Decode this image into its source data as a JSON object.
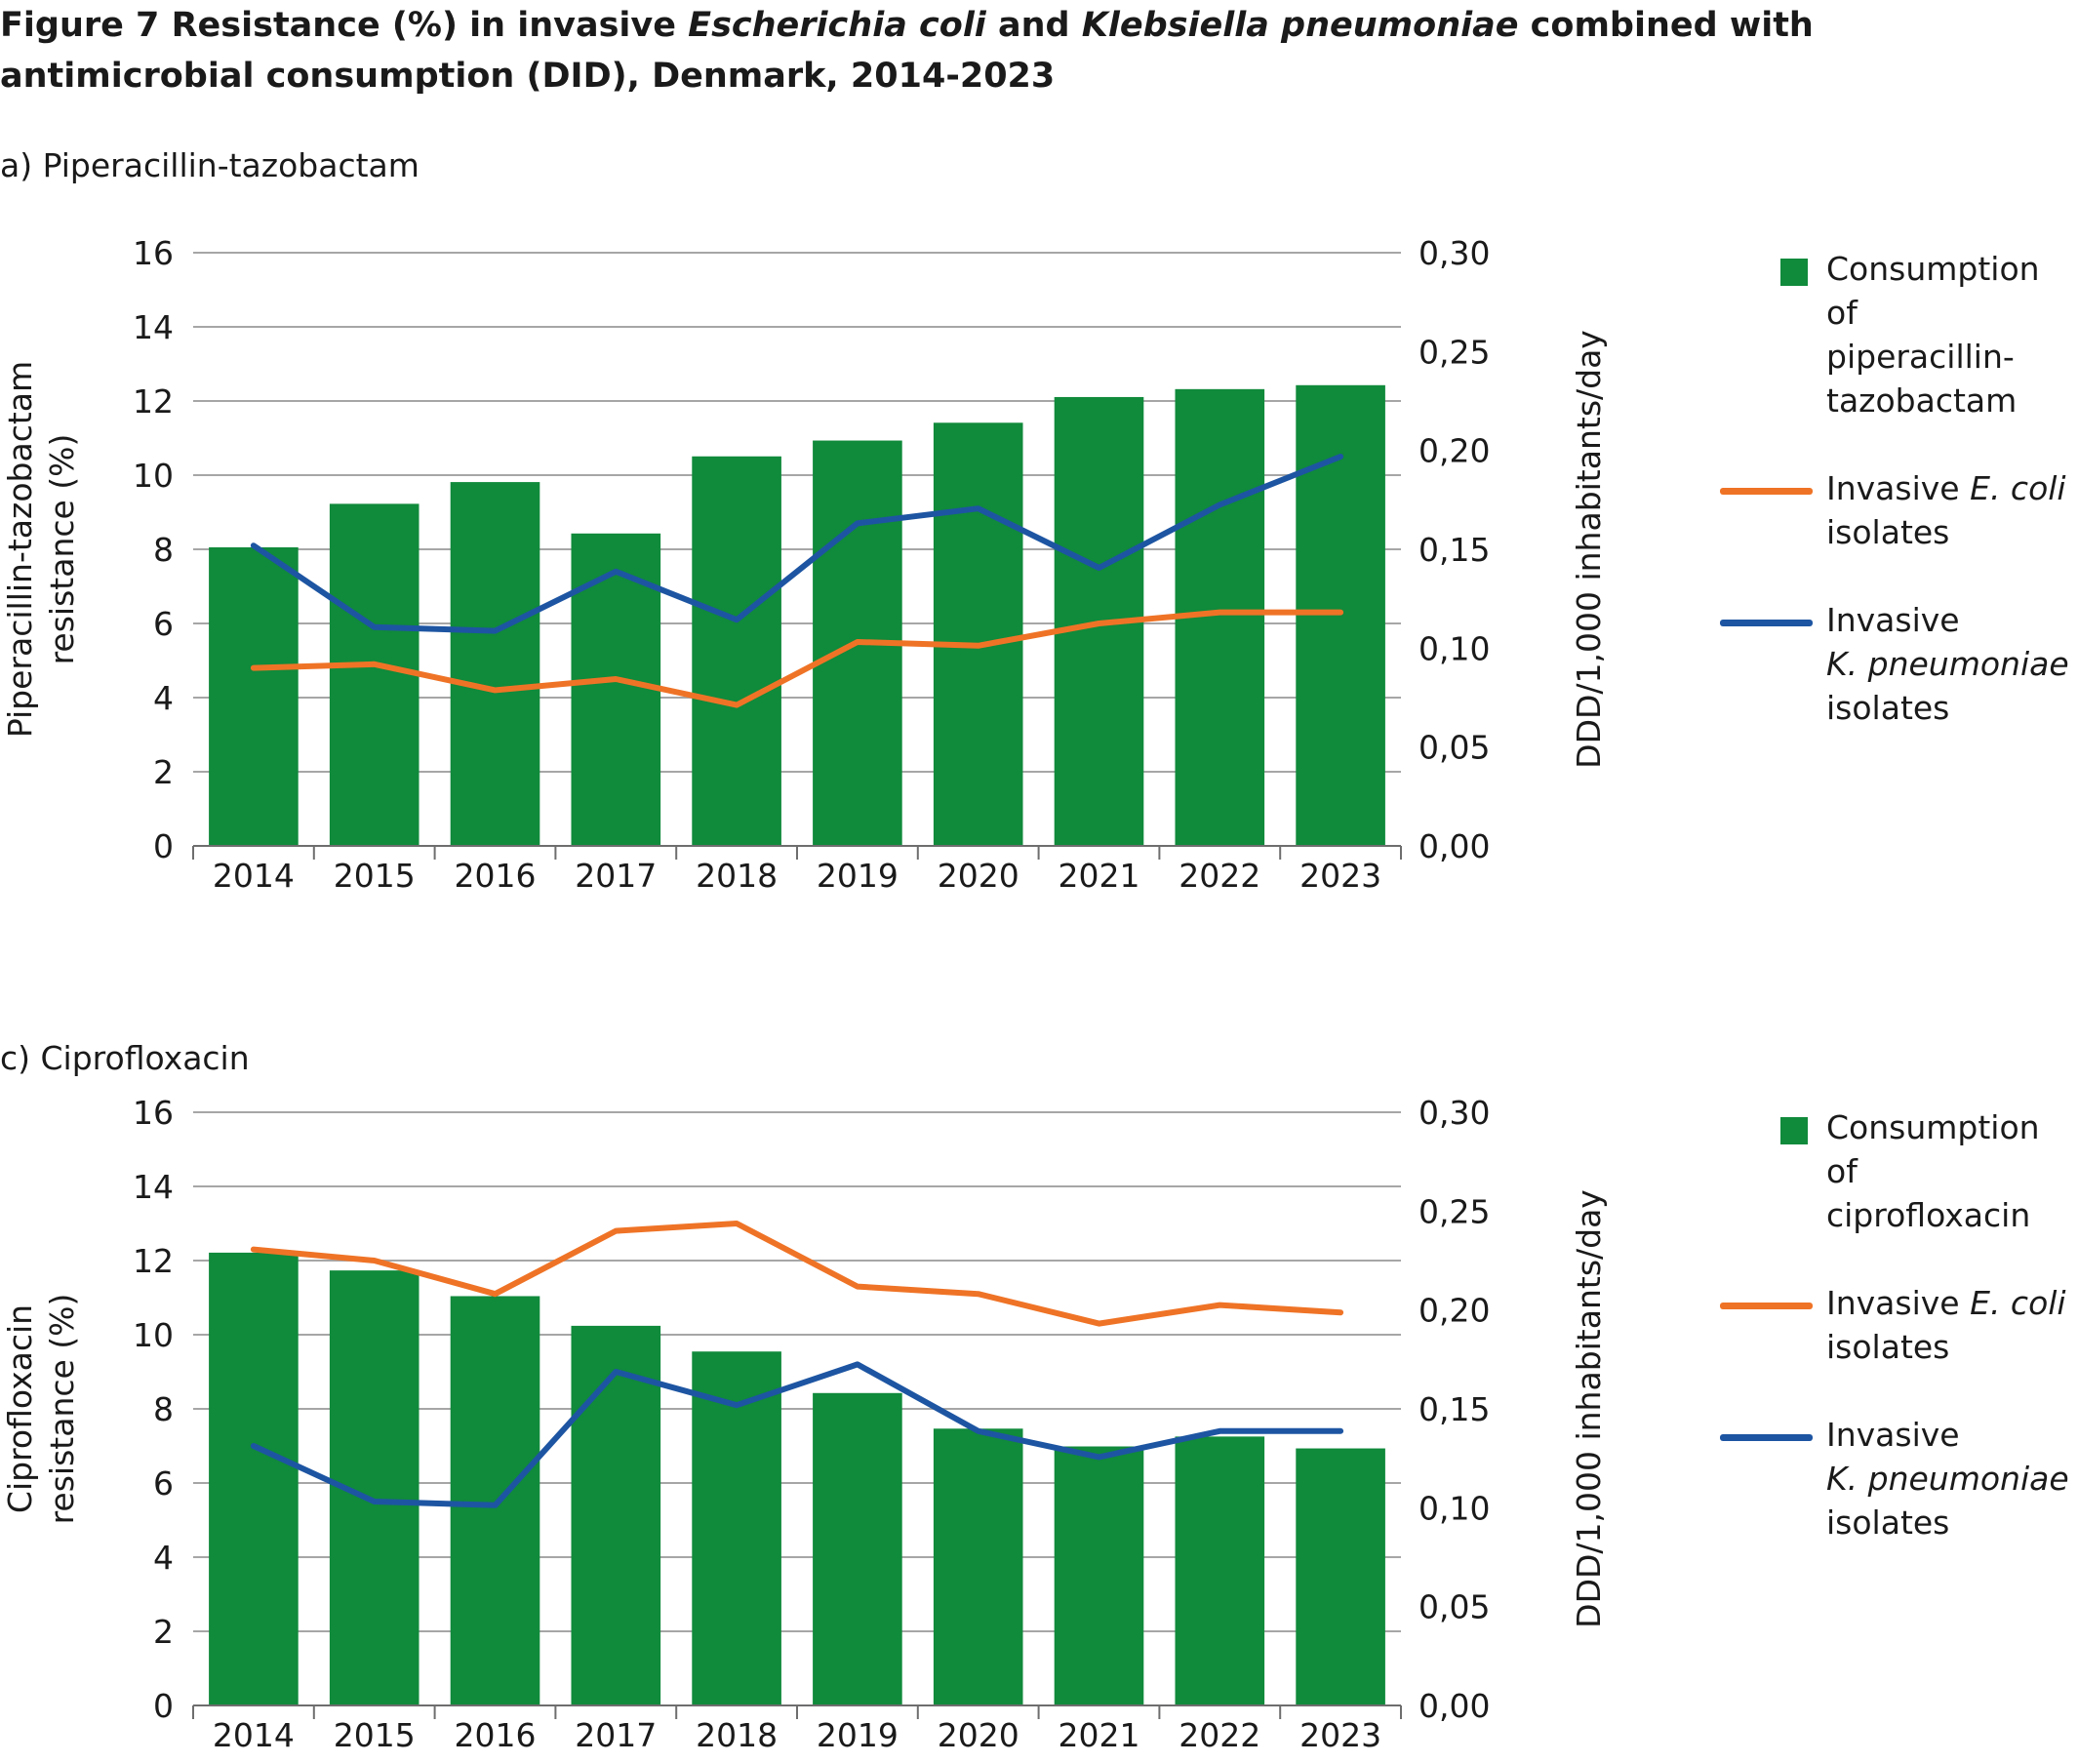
{
  "figure": {
    "title_parts": [
      {
        "text": "Figure 7 Resistance (%) in invasive ",
        "italic": false
      },
      {
        "text": "Escherichia coli",
        "italic": true
      },
      {
        "text": " and ",
        "italic": false
      },
      {
        "text": "Klebsiella pneumoniae",
        "italic": true
      },
      {
        "text": " combined with antimicrobial consumption (DID), Denmark, 2014-2023",
        "italic": false
      }
    ]
  },
  "colors": {
    "bar": "#108a3b",
    "ecoli": "#ef7326",
    "kpneumoniae": "#1d55a2",
    "grid": "#a6a6a6",
    "axis": "#6e6e6e"
  },
  "chart_data": [
    {
      "panel_label": "a) Piperacillin-tazobactam",
      "type": "bar",
      "categories": [
        "2014",
        "2015",
        "2016",
        "2017",
        "2018",
        "2019",
        "2020",
        "2021",
        "2022",
        "2023"
      ],
      "y_left": {
        "label_lines": [
          "Piperacillin-tazobactam",
          "resistance (%)"
        ],
        "ylim": [
          0,
          16
        ],
        "ticks": [
          "0",
          "2",
          "4",
          "6",
          "8",
          "10",
          "12",
          "14",
          "16"
        ]
      },
      "y_right": {
        "label": "DDD/1,000 inhabitants/day",
        "ylim": [
          0,
          0.3
        ],
        "ticks": [
          "0,00",
          "0,05",
          "0,10",
          "0,15",
          "0,20",
          "0,25",
          "0,30"
        ]
      },
      "bars": {
        "name": [
          "Consumption of",
          "piperacillin-",
          "tazobactam"
        ],
        "axis": "right",
        "values": [
          0.151,
          0.173,
          0.184,
          0.158,
          0.197,
          0.205,
          0.214,
          0.227,
          0.231,
          0.233
        ]
      },
      "lines": [
        {
          "key": "ecoli",
          "name_parts": [
            {
              "text": "Invasive ",
              "italic": false
            },
            {
              "text": "E. coli",
              "italic": true
            }
          ],
          "name_line2": "isolates",
          "axis": "left",
          "values": [
            4.8,
            4.9,
            4.2,
            4.5,
            3.8,
            5.5,
            5.4,
            6.0,
            6.3,
            6.3
          ]
        },
        {
          "key": "kpneumoniae",
          "name_parts": [
            {
              "text": "Invasive",
              "italic": false
            }
          ],
          "name_line2_parts": [
            {
              "text": "K. pneumoniae",
              "italic": true
            }
          ],
          "name_line3": "isolates",
          "axis": "left",
          "values": [
            8.1,
            5.9,
            5.8,
            7.4,
            6.1,
            8.7,
            9.1,
            7.5,
            9.2,
            10.5
          ]
        }
      ],
      "grid": true,
      "legend_position": "right"
    },
    {
      "panel_label": "c) Ciprofloxacin",
      "type": "bar",
      "categories": [
        "2014",
        "2015",
        "2016",
        "2017",
        "2018",
        "2019",
        "2020",
        "2021",
        "2022",
        "2023"
      ],
      "y_left": {
        "label_lines": [
          "Ciprofloxacin",
          "resistance (%)"
        ],
        "ylim": [
          0,
          16
        ],
        "ticks": [
          "0",
          "2",
          "4",
          "6",
          "8",
          "10",
          "12",
          "14",
          "16"
        ]
      },
      "y_right": {
        "label": "DDD/1,000 inhabitants/day",
        "ylim": [
          0,
          0.3
        ],
        "ticks": [
          "0,00",
          "0,05",
          "0,10",
          "0,15",
          "0,20",
          "0,25",
          "0,30"
        ]
      },
      "bars": {
        "name": [
          "Consumption of",
          "ciprofloxacin"
        ],
        "axis": "right",
        "values": [
          0.229,
          0.22,
          0.207,
          0.192,
          0.179,
          0.158,
          0.14,
          0.131,
          0.136,
          0.13
        ]
      },
      "lines": [
        {
          "key": "ecoli",
          "name_parts": [
            {
              "text": "Invasive ",
              "italic": false
            },
            {
              "text": "E. coli",
              "italic": true
            }
          ],
          "name_line2": "isolates",
          "axis": "left",
          "values": [
            12.3,
            12.0,
            11.1,
            12.8,
            13.0,
            11.3,
            11.1,
            10.3,
            10.8,
            10.6
          ]
        },
        {
          "key": "kpneumoniae",
          "name_parts": [
            {
              "text": "Invasive",
              "italic": false
            }
          ],
          "name_line2_parts": [
            {
              "text": "K. pneumoniae",
              "italic": true
            }
          ],
          "name_line3": "isolates",
          "axis": "left",
          "values": [
            7.0,
            5.5,
            5.4,
            9.0,
            8.1,
            9.2,
            7.4,
            6.7,
            7.4,
            7.4
          ]
        }
      ],
      "grid": true,
      "legend_position": "right"
    }
  ]
}
